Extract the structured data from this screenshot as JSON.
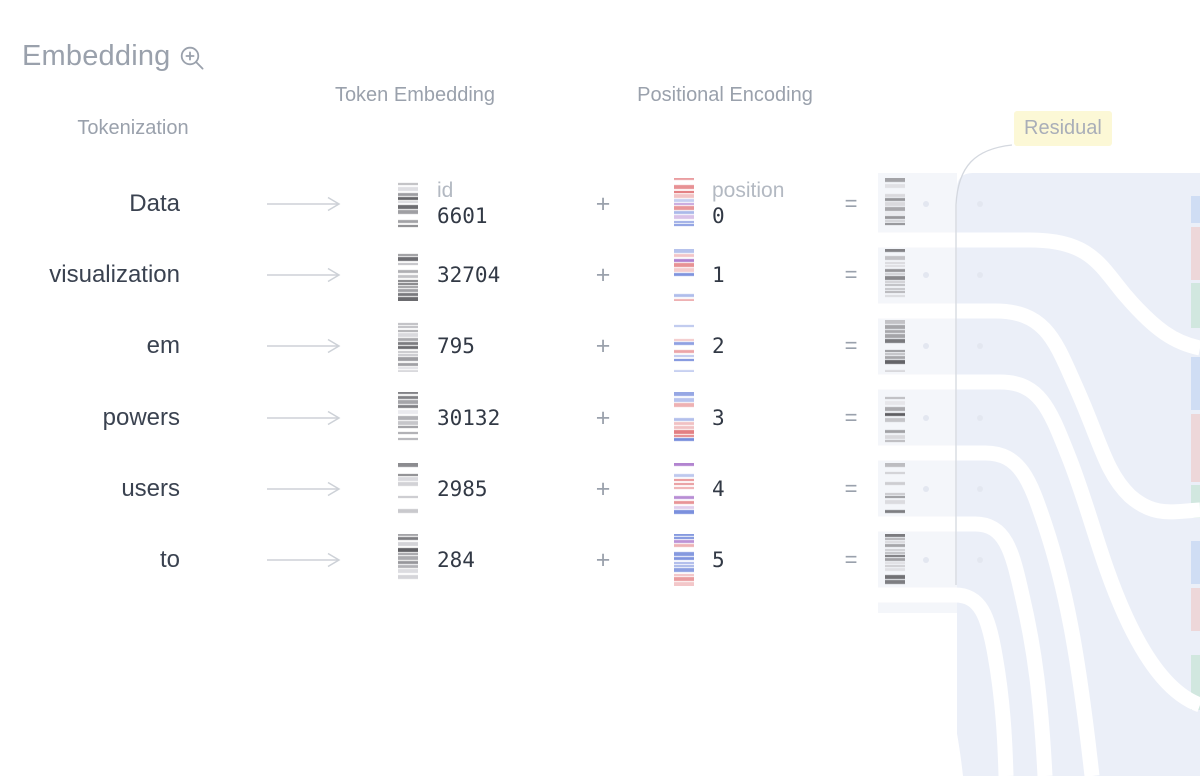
{
  "section": {
    "title": "Embedding",
    "zoom_icon": "magnifier-plus-icon"
  },
  "columns": {
    "tokenization": "Tokenization",
    "token_embedding": "Token Embedding",
    "positional_encoding": "Positional Encoding",
    "residual": "Residual"
  },
  "labels": {
    "id": "id",
    "position": "position",
    "plus": "+",
    "equals": "="
  },
  "rows": [
    {
      "token": "Data",
      "token_id": "6601",
      "position": "0"
    },
    {
      "token": "visualization",
      "token_id": "32704",
      "position": "1"
    },
    {
      "token": "em",
      "token_id": "795",
      "position": "2"
    },
    {
      "token": "powers",
      "token_id": "30132",
      "position": "3"
    },
    {
      "token": "users",
      "token_id": "2985",
      "position": "4"
    },
    {
      "token": "to",
      "token_id": "284",
      "position": "5"
    }
  ],
  "colors": {
    "title_gray": "#9aa1ac",
    "token_text": "#3a4250",
    "residual_highlight": "#fcf8d6",
    "residual_panel": "#ebeff8",
    "residual_strip": "#f4f6fa",
    "positional_red": "#dc6a70",
    "positional_blue": "#6c83d4",
    "arrow_gray": "#cdd1d7"
  }
}
